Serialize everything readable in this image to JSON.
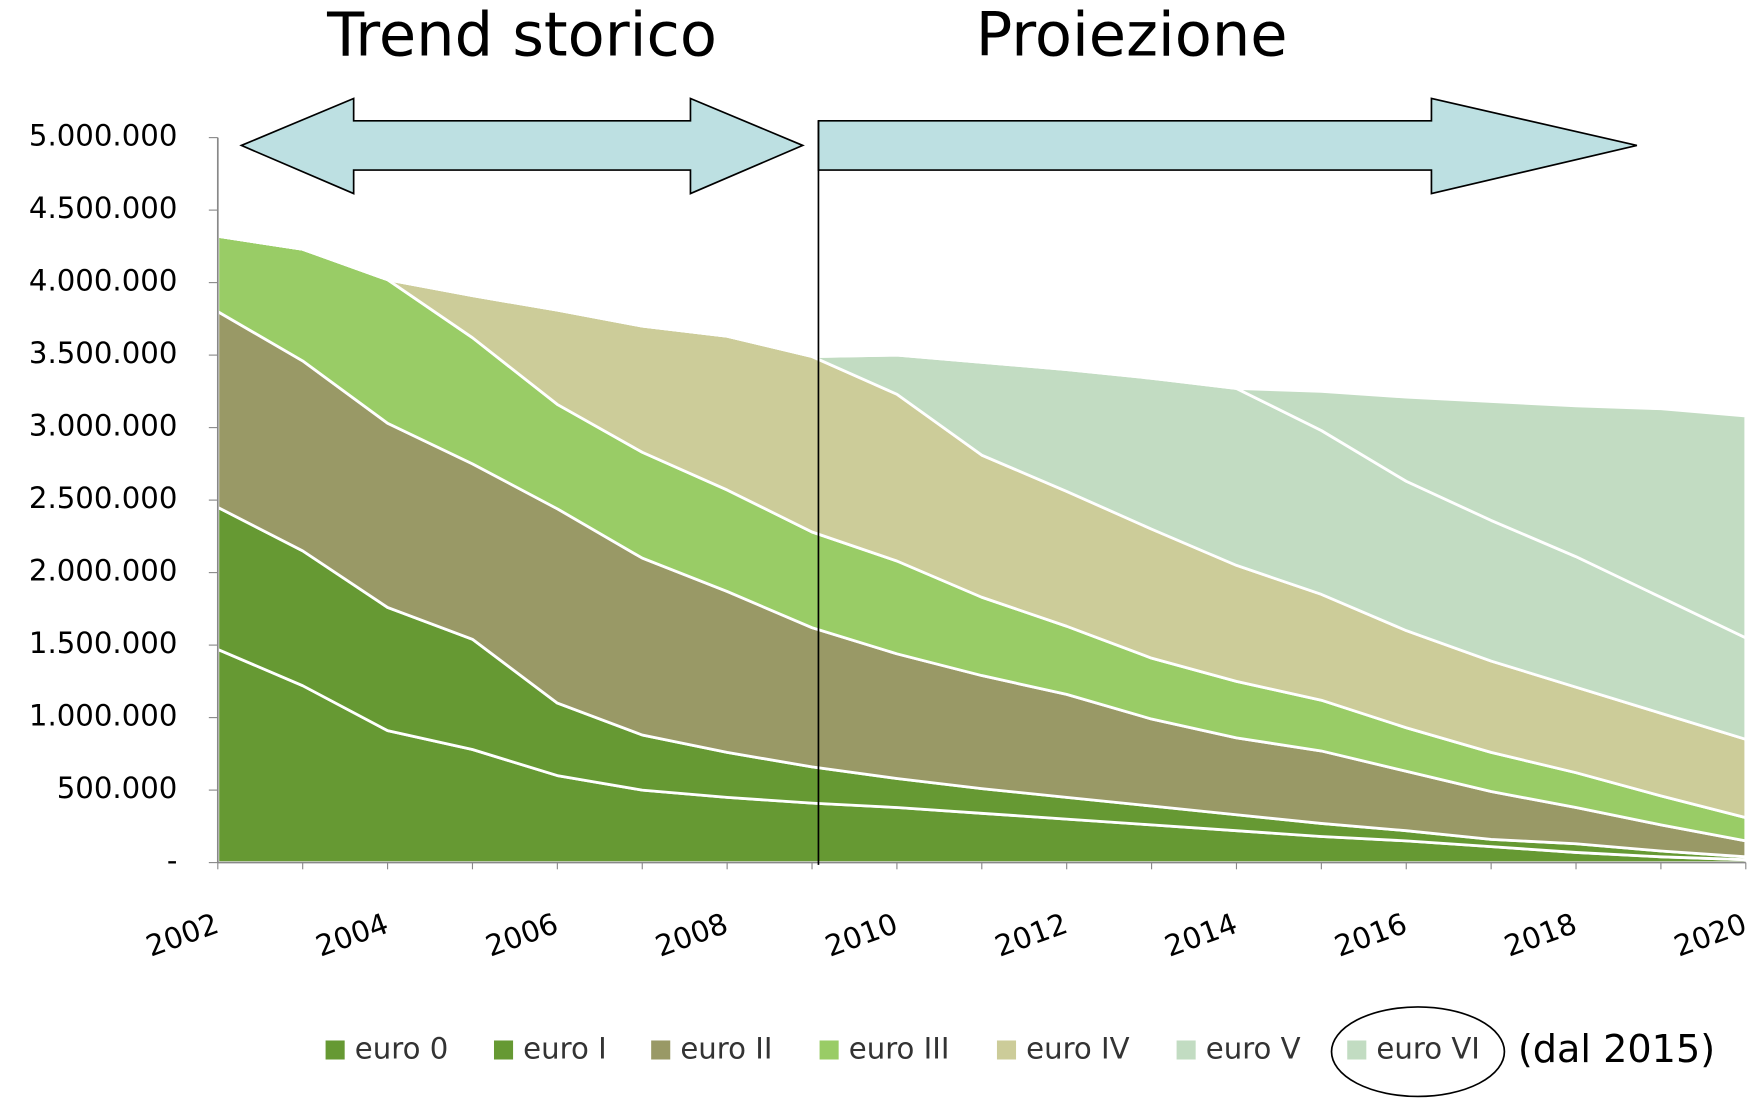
{
  "chart_data": {
    "type": "area",
    "stacked": true,
    "annotations": [
      "Trend storico",
      "Proiezione"
    ],
    "legend_note": "(dal 2015)",
    "x": [
      2002,
      2003,
      2004,
      2005,
      2006,
      2007,
      2008,
      2009,
      2010,
      2011,
      2012,
      2013,
      2014,
      2015,
      2016,
      2017,
      2018,
      2019,
      2020
    ],
    "xlim": [
      2002,
      2020
    ],
    "xticks": [
      2002,
      2004,
      2006,
      2008,
      2010,
      2012,
      2014,
      2016,
      2018,
      2020
    ],
    "ylim": [
      0,
      5000000
    ],
    "yticks": [
      {
        "value": 0,
        "label": "-"
      },
      {
        "value": 500000,
        "label": "500.000"
      },
      {
        "value": 1000000,
        "label": "1.000.000"
      },
      {
        "value": 1500000,
        "label": "1.500.000"
      },
      {
        "value": 2000000,
        "label": "2.000.000"
      },
      {
        "value": 2500000,
        "label": "2.500.000"
      },
      {
        "value": 3000000,
        "label": "3.000.000"
      },
      {
        "value": 3500000,
        "label": "3.500.000"
      },
      {
        "value": 4000000,
        "label": "4.000.000"
      },
      {
        "value": 4500000,
        "label": "4.500.000"
      },
      {
        "value": 5000000,
        "label": "5.000.000"
      }
    ],
    "grid": true,
    "legend": "bottom",
    "series": [
      {
        "name": "euro 0",
        "color": "#669933",
        "values": [
          1470000,
          1220000,
          910000,
          780000,
          600000,
          500000,
          450000,
          410000,
          380000,
          340000,
          300000,
          260000,
          220000,
          180000,
          150000,
          110000,
          70000,
          40000,
          20000
        ]
      },
      {
        "name": "euro I",
        "color": "#669933",
        "values": [
          980000,
          930000,
          850000,
          760000,
          500000,
          380000,
          310000,
          250000,
          200000,
          170000,
          150000,
          130000,
          110000,
          90000,
          70000,
          50000,
          60000,
          40000,
          20000
        ]
      },
      {
        "name": "euro II",
        "color": "#999966",
        "values": [
          1350000,
          1310000,
          1270000,
          1210000,
          1340000,
          1220000,
          1110000,
          960000,
          860000,
          780000,
          710000,
          600000,
          530000,
          500000,
          410000,
          330000,
          250000,
          180000,
          110000
        ]
      },
      {
        "name": "euro III",
        "color": "#99cc66",
        "values": [
          520000,
          770000,
          990000,
          870000,
          720000,
          730000,
          700000,
          660000,
          640000,
          540000,
          470000,
          420000,
          390000,
          350000,
          300000,
          270000,
          240000,
          200000,
          160000
        ]
      },
      {
        "name": "euro IV",
        "color": "#cccc99",
        "values": [
          0,
          0,
          0,
          290000,
          650000,
          870000,
          1060000,
          1210000,
          1150000,
          980000,
          930000,
          890000,
          800000,
          730000,
          670000,
          630000,
          590000,
          570000,
          540000
        ]
      },
      {
        "name": "euro V",
        "color": "#c2dcc2",
        "values": [
          0,
          0,
          0,
          0,
          0,
          0,
          0,
          0,
          270000,
          640000,
          840000,
          1040000,
          1220000,
          1130000,
          1030000,
          970000,
          900000,
          800000,
          700000
        ]
      },
      {
        "name": "euro VI",
        "color": "#c2dcc2",
        "values": [
          0,
          0,
          0,
          0,
          0,
          0,
          0,
          0,
          0,
          0,
          0,
          0,
          0,
          270000,
          580000,
          820000,
          1040000,
          1300000,
          1530000
        ]
      }
    ]
  }
}
